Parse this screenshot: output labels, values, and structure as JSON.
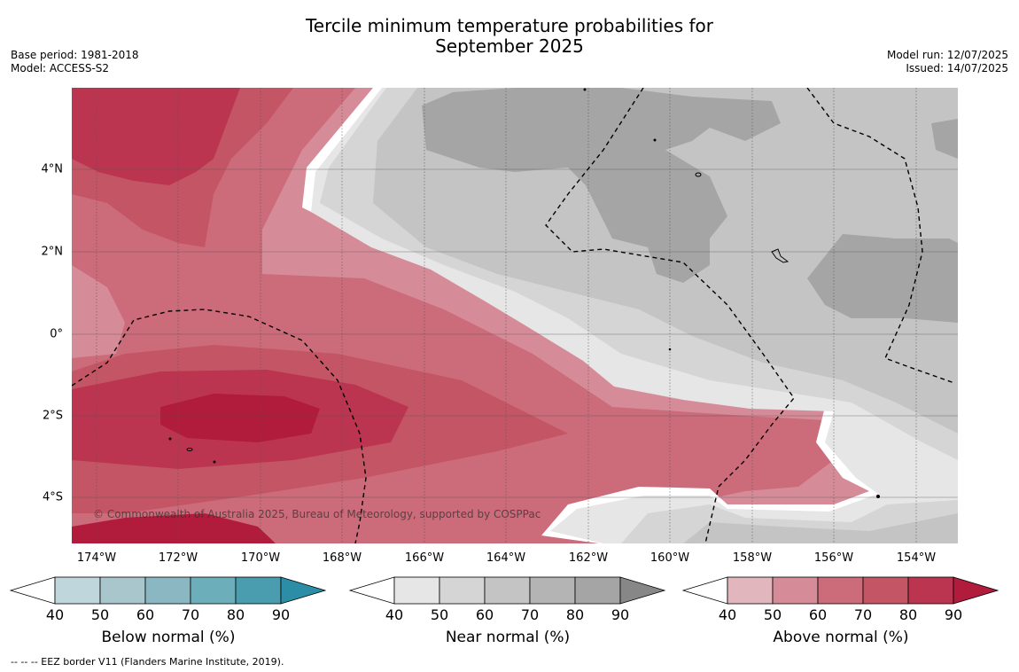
{
  "title": {
    "line1": "Tercile minimum temperature probabilities for",
    "line2": "September 2025"
  },
  "header_left": {
    "base_period": "Base period: 1981-2018",
    "model": "Model: ACCESS-S2"
  },
  "header_right": {
    "model_run": "Model run: 12/07/2025",
    "issued": "Issued: 14/07/2025"
  },
  "map": {
    "lon_labels": [
      "174°W",
      "172°W",
      "170°W",
      "168°W",
      "166°W",
      "164°W",
      "162°W",
      "160°W",
      "158°W",
      "156°W",
      "154°W"
    ],
    "lat_labels": [
      "4°N",
      "2°N",
      "0°",
      "2°S",
      "4°S"
    ],
    "copyright": "© Commonwealth of Australia 2025, Bureau of Meteorology, supported by COSPPac",
    "colors": {
      "above": [
        "#e2b6bd",
        "#d68c98",
        "#cc6b7a",
        "#c45565",
        "#bc3550",
        "#b11b3c"
      ],
      "near": [
        "#e6e6e6",
        "#d5d5d5",
        "#c4c4c4",
        "#b4b4b4",
        "#a5a5a5",
        "#878787"
      ],
      "below": [
        "#bfd6dd",
        "#a8c6cc",
        "#8bb7c3",
        "#6daebb",
        "#4a9dae",
        "#2b8ea6"
      ]
    }
  },
  "colorbars": {
    "ticks": [
      "40",
      "50",
      "60",
      "70",
      "80",
      "90"
    ],
    "below": {
      "title": "Below normal (%)"
    },
    "near": {
      "title": "Near normal (%)"
    },
    "above": {
      "title": "Above normal (%)"
    }
  },
  "footnote": "--  --  -- EEZ border V11 (Flanders Marine Institute, 2019)."
}
